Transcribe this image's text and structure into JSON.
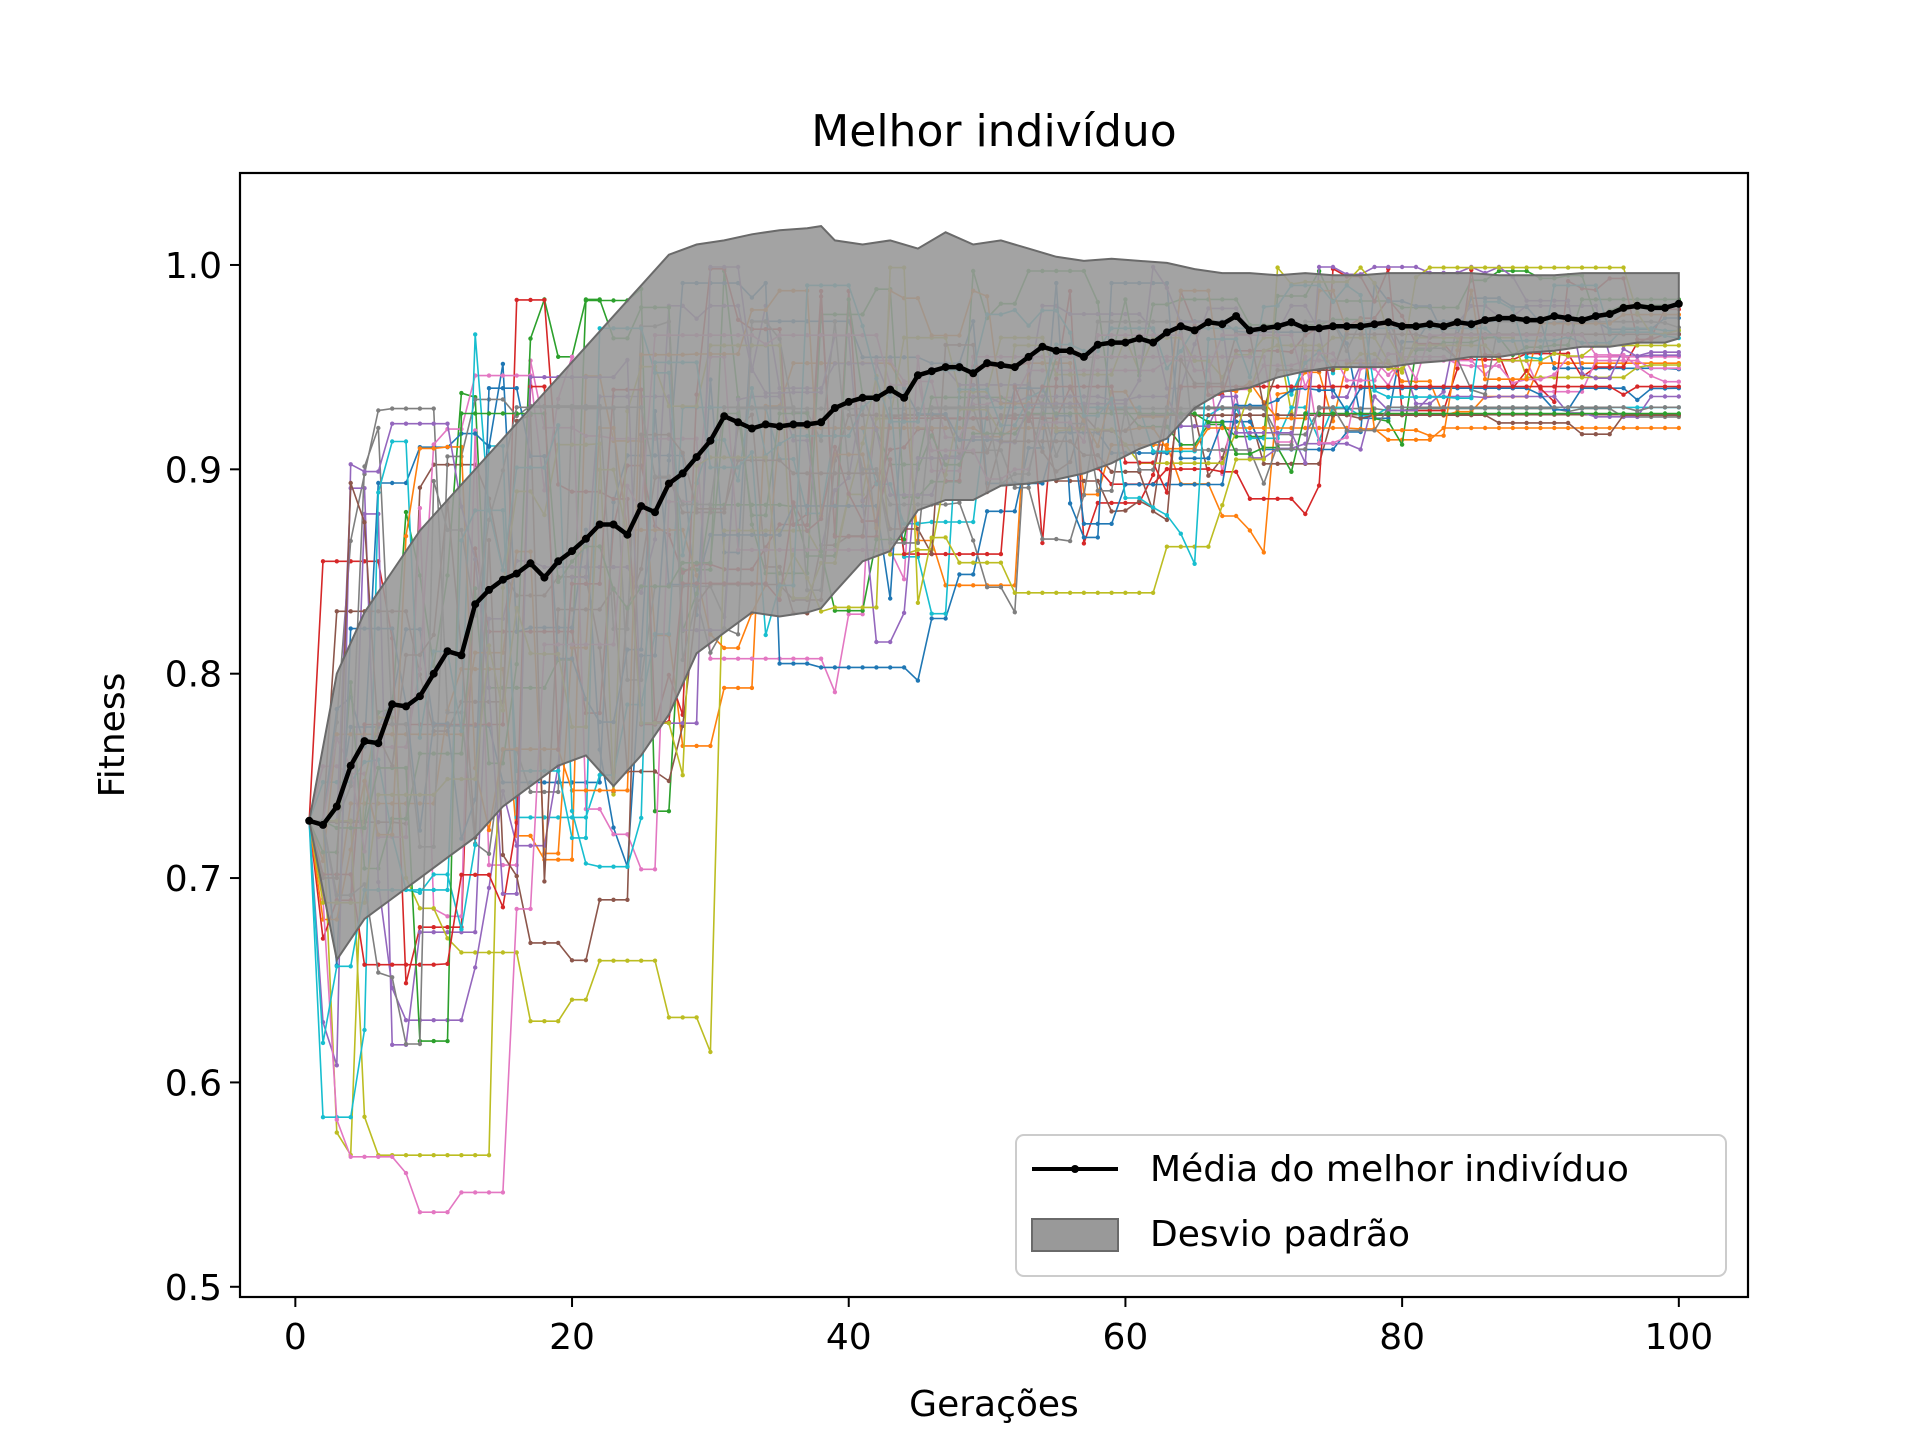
{
  "chart_data": {
    "type": "line",
    "title": "Melhor indivíduo",
    "xlabel": "Gerações",
    "ylabel": "Fitness",
    "xlim": [
      -4,
      105
    ],
    "ylim": [
      0.495,
      1.045
    ],
    "xticks": [
      0,
      20,
      40,
      60,
      80,
      100
    ],
    "yticks": [
      0.5,
      0.6,
      0.7,
      0.8,
      0.9,
      1.0
    ],
    "xtick_labels": [
      "0",
      "20",
      "40",
      "60",
      "80",
      "100"
    ],
    "ytick_labels": [
      "0.5",
      "0.6",
      "0.7",
      "0.8",
      "0.9",
      "1.0"
    ],
    "grid": false,
    "legend": {
      "placement": "lower-right",
      "entries": [
        "Média do melhor indivíduo",
        "Desvio padrão"
      ]
    },
    "colors": {
      "mean_line": "#000000",
      "std_band": "#999999",
      "std_band_edge": "#6a6a6a",
      "runs": [
        "#1f77b4",
        "#ff7f0e",
        "#2ca02c",
        "#d62728",
        "#9467bd",
        "#8c564b",
        "#e377c2",
        "#7f7f7f",
        "#bcbd22",
        "#17becf"
      ]
    },
    "mean": {
      "name": "Média do melhor indivíduo",
      "x": [
        1,
        2,
        3,
        4,
        5,
        6,
        7,
        8,
        9,
        10,
        11,
        12,
        13,
        14,
        15,
        16,
        17,
        18,
        19,
        20,
        21,
        22,
        23,
        24,
        25,
        26,
        27,
        28,
        29,
        30,
        31,
        32,
        33,
        34,
        35,
        36,
        37,
        38,
        39,
        40,
        41,
        42,
        43,
        44,
        45,
        46,
        47,
        48,
        49,
        50,
        51,
        52,
        53,
        54,
        55,
        56,
        57,
        58,
        59,
        60,
        61,
        62,
        63,
        64,
        65,
        66,
        67,
        68,
        69,
        70,
        71,
        72,
        73,
        74,
        75,
        76,
        77,
        78,
        79,
        80,
        81,
        82,
        83,
        84,
        85,
        86,
        87,
        88,
        89,
        90,
        91,
        92,
        93,
        94,
        95,
        96,
        97,
        98,
        99,
        100
      ],
      "y": [
        0.728,
        0.726,
        0.735,
        0.755,
        0.767,
        0.766,
        0.785,
        0.784,
        0.789,
        0.8,
        0.811,
        0.809,
        0.834,
        0.841,
        0.846,
        0.849,
        0.854,
        0.847,
        0.855,
        0.86,
        0.866,
        0.873,
        0.873,
        0.868,
        0.882,
        0.879,
        0.893,
        0.898,
        0.906,
        0.914,
        0.926,
        0.923,
        0.92,
        0.922,
        0.921,
        0.922,
        0.922,
        0.923,
        0.93,
        0.933,
        0.935,
        0.935,
        0.939,
        0.935,
        0.946,
        0.948,
        0.95,
        0.95,
        0.947,
        0.952,
        0.951,
        0.95,
        0.955,
        0.96,
        0.958,
        0.958,
        0.955,
        0.961,
        0.962,
        0.962,
        0.964,
        0.962,
        0.967,
        0.97,
        0.968,
        0.972,
        0.971,
        0.975,
        0.968,
        0.969,
        0.97,
        0.972,
        0.969,
        0.969,
        0.97,
        0.97,
        0.97,
        0.971,
        0.972,
        0.97,
        0.97,
        0.971,
        0.97,
        0.972,
        0.971,
        0.973,
        0.974,
        0.974,
        0.973,
        0.973,
        0.975,
        0.974,
        0.973,
        0.975,
        0.976,
        0.979,
        0.98,
        0.979,
        0.979,
        0.981
      ]
    },
    "std_band": {
      "name": "Desvio padrão",
      "x": [
        1,
        3,
        5,
        7,
        9,
        11,
        13,
        15,
        17,
        19,
        21,
        23,
        25,
        27,
        29,
        31,
        33,
        35,
        37,
        38,
        39,
        41,
        43,
        45,
        47,
        49,
        51,
        53,
        55,
        57,
        59,
        61,
        63,
        65,
        67,
        69,
        71,
        73,
        75,
        77,
        79,
        81,
        83,
        85,
        87,
        89,
        91,
        93,
        95,
        97,
        99,
        100
      ],
      "upper": [
        0.728,
        0.8,
        0.83,
        0.85,
        0.87,
        0.885,
        0.9,
        0.915,
        0.93,
        0.945,
        0.96,
        0.975,
        0.99,
        1.005,
        1.01,
        1.012,
        1.015,
        1.017,
        1.018,
        1.019,
        1.012,
        1.01,
        1.012,
        1.008,
        1.016,
        1.01,
        1.012,
        1.008,
        1.004,
        1.002,
        1.003,
        1.002,
        1.001,
        0.998,
        0.996,
        0.996,
        0.995,
        0.996,
        0.995,
        0.995,
        0.996,
        0.996,
        0.996,
        0.996,
        0.995,
        0.995,
        0.995,
        0.996,
        0.996,
        0.996,
        0.996,
        0.996
      ],
      "lower": [
        0.728,
        0.66,
        0.68,
        0.69,
        0.7,
        0.71,
        0.72,
        0.735,
        0.745,
        0.755,
        0.76,
        0.745,
        0.76,
        0.78,
        0.81,
        0.82,
        0.83,
        0.828,
        0.83,
        0.832,
        0.84,
        0.855,
        0.86,
        0.88,
        0.885,
        0.885,
        0.892,
        0.893,
        0.895,
        0.898,
        0.903,
        0.91,
        0.915,
        0.93,
        0.938,
        0.94,
        0.945,
        0.948,
        0.95,
        0.95,
        0.95,
        0.952,
        0.953,
        0.955,
        0.955,
        0.957,
        0.958,
        0.96,
        0.96,
        0.962,
        0.962,
        0.964
      ]
    },
    "runs": {
      "count": 30,
      "generations": 100,
      "start_value": 0.728,
      "marker": "dot"
    }
  }
}
